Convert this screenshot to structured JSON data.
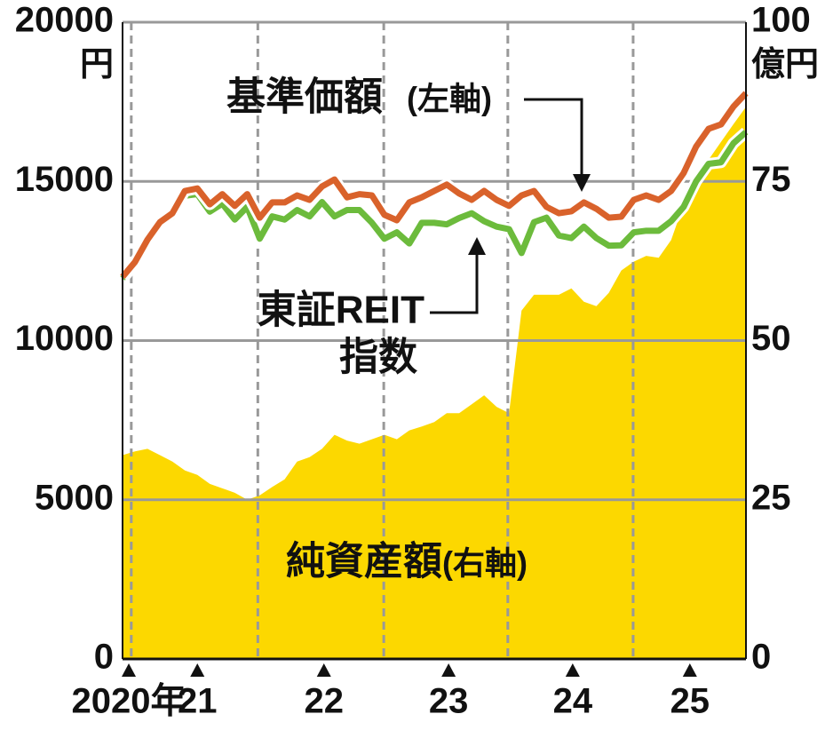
{
  "chart_data": {
    "type": "line",
    "x": [
      0,
      2,
      4,
      6,
      8,
      10,
      12,
      14,
      16,
      18,
      20,
      22,
      24,
      26,
      28,
      30,
      32,
      34,
      36,
      38,
      40,
      42,
      44,
      46,
      48,
      50,
      52,
      54,
      56,
      58,
      60,
      62,
      64,
      66,
      68,
      70,
      72,
      74,
      76,
      78,
      80,
      82,
      84,
      86,
      88,
      90,
      92,
      94,
      96,
      98,
      100
    ],
    "xlim": [
      0,
      100
    ],
    "xticks": [
      {
        "value": 1,
        "label": "2020年"
      },
      {
        "value": 12,
        "label": "21"
      },
      {
        "value": 32.3,
        "label": "22"
      },
      {
        "value": 52.3,
        "label": "23"
      },
      {
        "value": 72.2,
        "label": "24"
      },
      {
        "value": 91,
        "label": "25"
      }
    ],
    "xgrid": [
      1.4,
      21.7,
      41.9,
      61.8,
      81.9
    ],
    "ylim": [
      0,
      20000
    ],
    "yticks": [
      0,
      5000,
      10000,
      15000,
      20000
    ],
    "y_unit": "円",
    "y2lim": [
      0,
      100
    ],
    "y2ticks": [
      0,
      25,
      50,
      75,
      100
    ],
    "y2_unit": "億円",
    "grid": true,
    "series": [
      {
        "type": "area",
        "name": "純資産額",
        "axis_note": "(右軸)",
        "axis": "y2",
        "color": "#fcd800",
        "values": [
          32,
          32.6,
          33,
          32,
          31,
          29.6,
          28.9,
          27.5,
          26.8,
          26.1,
          25,
          25.7,
          27,
          28.2,
          31,
          31.7,
          33,
          35.2,
          34.3,
          33.8,
          34.5,
          35.2,
          34.5,
          35.9,
          36.5,
          37.2,
          38.6,
          38.6,
          40,
          41.4,
          39.6,
          38.6,
          54.7,
          57.2,
          57.2,
          57.2,
          58.2,
          56.1,
          55.4,
          57.5,
          61,
          62.4,
          63.3,
          63,
          65.8,
          71.4,
          74.2,
          78.4,
          81.2,
          84,
          86.7
        ]
      },
      {
        "type": "line",
        "label_lines": [
          "東証REIT",
          "指数"
        ],
        "color": "#6cbb3c",
        "values": [
          11950,
          12400,
          13100,
          13650,
          13900,
          14550,
          14600,
          14050,
          14300,
          13800,
          14200,
          13200,
          13900,
          13800,
          14100,
          13900,
          14350,
          13900,
          14100,
          14100,
          13700,
          13200,
          13400,
          13050,
          13700,
          13700,
          13650,
          13850,
          14000,
          13750,
          13580,
          13500,
          12750,
          13720,
          13860,
          13300,
          13220,
          13580,
          13220,
          12980,
          12990,
          13400,
          13450,
          13450,
          13750,
          14200,
          15000,
          15550,
          15600,
          16200,
          16550
        ]
      },
      {
        "type": "line",
        "name": "基準価額",
        "axis_note": "(左軸)",
        "color": "#d9622b",
        "values": [
          12000,
          12470,
          13170,
          13720,
          14000,
          14700,
          14780,
          14280,
          14600,
          14230,
          14600,
          13860,
          14340,
          14340,
          14560,
          14420,
          14840,
          15060,
          14500,
          14600,
          14560,
          13950,
          13780,
          14340,
          14500,
          14700,
          14900,
          14620,
          14420,
          14700,
          14420,
          14230,
          14560,
          14700,
          14200,
          14000,
          14060,
          14340,
          14140,
          13860,
          13890,
          14420,
          14560,
          14420,
          14700,
          15260,
          16090,
          16650,
          16790,
          17350,
          17770
        ]
      }
    ]
  }
}
